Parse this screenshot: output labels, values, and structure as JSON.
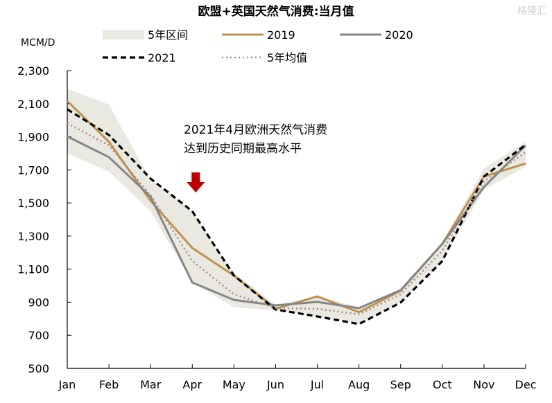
{
  "chart_data": {
    "type": "line",
    "title": "欧盟+英国天然气消费:当月值",
    "ylabel": "MCM/D",
    "xlabel": "",
    "ylim": [
      500,
      2300
    ],
    "yticks": [
      500,
      700,
      900,
      1100,
      1300,
      1500,
      1700,
      1900,
      2100,
      2300
    ],
    "ytick_labels": [
      "500",
      "700",
      "900",
      "1,100",
      "1,300",
      "1,500",
      "1,700",
      "1,900",
      "2,100",
      "2,300"
    ],
    "categories": [
      "Jan",
      "Feb",
      "Mar",
      "Apr",
      "May",
      "Jun",
      "Jul",
      "Aug",
      "Sep",
      "Oct",
      "Nov",
      "Dec"
    ],
    "range_band": {
      "name": "5年区间",
      "color": "#e9e8e1",
      "upper": [
        2190,
        2095,
        1640,
        1450,
        1080,
        885,
        935,
        870,
        975,
        1260,
        1710,
        1870
      ],
      "lower": [
        1800,
        1690,
        1450,
        1019,
        870,
        850,
        814,
        768,
        898,
        1149,
        1580,
        1720
      ]
    },
    "series": [
      {
        "name": "2019",
        "color": "#c0914e",
        "style": "solid",
        "values": [
          2116,
          1870,
          1513,
          1228,
          1061,
          860,
          935,
          840,
          969,
          1253,
          1660,
          1739
        ]
      },
      {
        "name": "2020",
        "color": "#858585",
        "style": "solid",
        "values": [
          1902,
          1777,
          1538,
          1019,
          914,
          881,
          902,
          864,
          973,
          1253,
          1597,
          1848
        ]
      },
      {
        "name": "2021",
        "color": "#000000",
        "style": "dashed",
        "values": [
          2066,
          1911,
          1647,
          1450,
          1061,
          856,
          814,
          768,
          898,
          1149,
          1660,
          1852
        ]
      },
      {
        "name": "5年均值",
        "color": "#a38b7c",
        "style": "dotted",
        "values": [
          1982,
          1848,
          1546,
          1149,
          948,
          864,
          860,
          827,
          948,
          1212,
          1630,
          1806
        ]
      }
    ],
    "annotation": {
      "lines": [
        "2021年4月欧洲天然气消费",
        "达到历史同期最高水平"
      ],
      "arrow_color": "#c00000",
      "target_category": "Apr"
    },
    "legend_position": "top",
    "grid": false
  },
  "watermark": "格隆汇"
}
